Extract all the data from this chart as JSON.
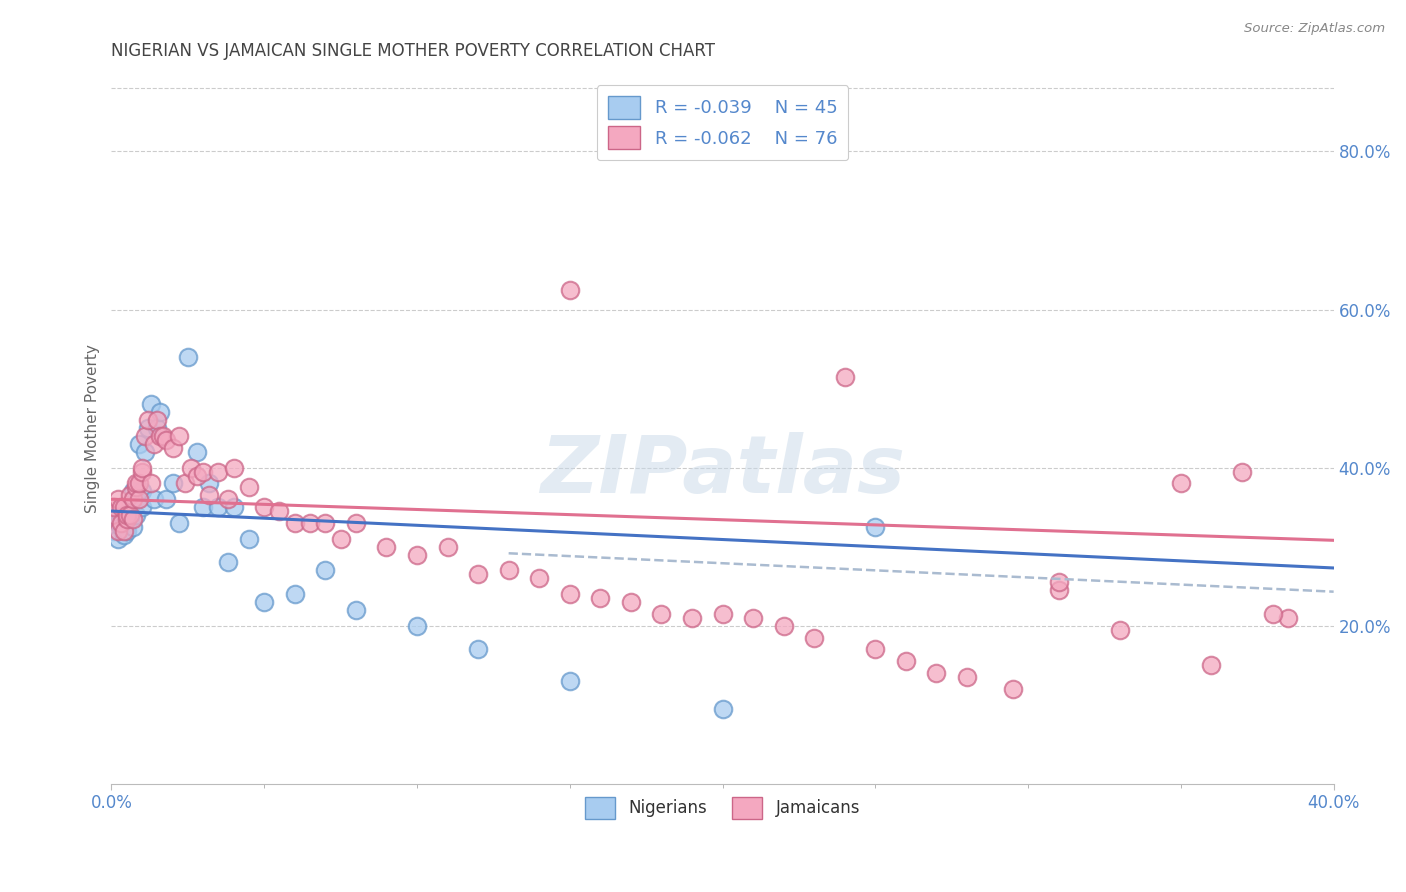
{
  "title": "NIGERIAN VS JAMAICAN SINGLE MOTHER POVERTY CORRELATION CHART",
  "source": "Source: ZipAtlas.com",
  "ylabel": "Single Mother Poverty",
  "xlim": [
    0.0,
    0.4
  ],
  "ylim": [
    0.0,
    0.9
  ],
  "xtick_vals": [
    0.0,
    0.4
  ],
  "xtick_labels": [
    "0.0%",
    "40.0%"
  ],
  "yticks_right": [
    0.2,
    0.4,
    0.6,
    0.8
  ],
  "ytick_labels_right": [
    "20.0%",
    "40.0%",
    "60.0%",
    "80.0%"
  ],
  "nigerian_color": "#A8CCF0",
  "jamaican_color": "#F4A8C0",
  "nigerian_edge_color": "#6699CC",
  "jamaican_edge_color": "#CC6688",
  "nigerian_line_color": "#4472C4",
  "jamaican_line_color": "#E07090",
  "dashed_line_color": "#AABBD0",
  "legend_r_nigerian": "R = -0.039",
  "legend_n_nigerian": "N = 45",
  "legend_r_jamaican": "R = -0.062",
  "legend_n_jamaican": "N = 76",
  "watermark": "ZIPatlas",
  "background_color": "#FFFFFF",
  "grid_color": "#CCCCCC",
  "title_color": "#444444",
  "axis_label_color": "#666666",
  "tick_color": "#5588CC",
  "nigerian_x": [
    0.001,
    0.001,
    0.002,
    0.002,
    0.003,
    0.003,
    0.004,
    0.004,
    0.005,
    0.005,
    0.006,
    0.006,
    0.007,
    0.007,
    0.008,
    0.008,
    0.009,
    0.01,
    0.01,
    0.011,
    0.012,
    0.013,
    0.014,
    0.015,
    0.016,
    0.018,
    0.02,
    0.022,
    0.025,
    0.028,
    0.03,
    0.032,
    0.035,
    0.038,
    0.04,
    0.045,
    0.05,
    0.06,
    0.07,
    0.08,
    0.1,
    0.12,
    0.15,
    0.2,
    0.25
  ],
  "nigerian_y": [
    0.335,
    0.32,
    0.33,
    0.31,
    0.34,
    0.325,
    0.315,
    0.345,
    0.33,
    0.32,
    0.335,
    0.35,
    0.37,
    0.325,
    0.34,
    0.36,
    0.43,
    0.37,
    0.35,
    0.42,
    0.45,
    0.48,
    0.36,
    0.45,
    0.47,
    0.36,
    0.38,
    0.33,
    0.54,
    0.42,
    0.35,
    0.38,
    0.35,
    0.28,
    0.35,
    0.31,
    0.23,
    0.24,
    0.27,
    0.22,
    0.2,
    0.17,
    0.13,
    0.095,
    0.325
  ],
  "jamaican_x": [
    0.001,
    0.001,
    0.002,
    0.002,
    0.003,
    0.003,
    0.004,
    0.004,
    0.005,
    0.005,
    0.006,
    0.006,
    0.007,
    0.007,
    0.008,
    0.008,
    0.009,
    0.009,
    0.01,
    0.01,
    0.011,
    0.012,
    0.013,
    0.014,
    0.015,
    0.016,
    0.017,
    0.018,
    0.02,
    0.022,
    0.024,
    0.026,
    0.028,
    0.03,
    0.032,
    0.035,
    0.038,
    0.04,
    0.045,
    0.05,
    0.055,
    0.06,
    0.065,
    0.07,
    0.075,
    0.08,
    0.09,
    0.1,
    0.11,
    0.12,
    0.13,
    0.14,
    0.15,
    0.16,
    0.17,
    0.18,
    0.19,
    0.2,
    0.21,
    0.22,
    0.23,
    0.25,
    0.26,
    0.27,
    0.28,
    0.295,
    0.31,
    0.33,
    0.35,
    0.37,
    0.385,
    0.31,
    0.15,
    0.24,
    0.36,
    0.38
  ],
  "jamaican_y": [
    0.34,
    0.35,
    0.32,
    0.36,
    0.33,
    0.35,
    0.32,
    0.35,
    0.335,
    0.34,
    0.365,
    0.34,
    0.36,
    0.335,
    0.375,
    0.38,
    0.36,
    0.38,
    0.395,
    0.4,
    0.44,
    0.46,
    0.38,
    0.43,
    0.46,
    0.44,
    0.44,
    0.435,
    0.425,
    0.44,
    0.38,
    0.4,
    0.39,
    0.395,
    0.365,
    0.395,
    0.36,
    0.4,
    0.375,
    0.35,
    0.345,
    0.33,
    0.33,
    0.33,
    0.31,
    0.33,
    0.3,
    0.29,
    0.3,
    0.265,
    0.27,
    0.26,
    0.24,
    0.235,
    0.23,
    0.215,
    0.21,
    0.215,
    0.21,
    0.2,
    0.185,
    0.17,
    0.155,
    0.14,
    0.135,
    0.12,
    0.245,
    0.195,
    0.38,
    0.395,
    0.21,
    0.255,
    0.625,
    0.515,
    0.15,
    0.215
  ],
  "nigerian_slope": -0.18,
  "nigerian_intercept": 0.345,
  "jamaican_slope": -0.13,
  "jamaican_intercept": 0.36
}
